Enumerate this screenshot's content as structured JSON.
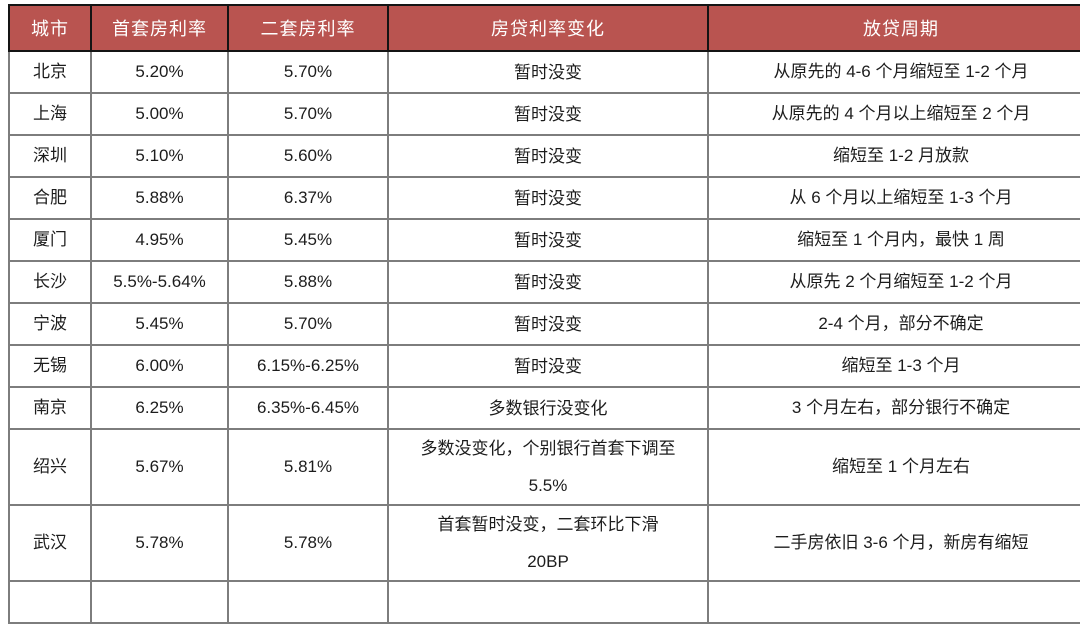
{
  "chart_data": {
    "type": "table",
    "columns": [
      "城市",
      "首套房利率",
      "二套房利率",
      "房贷利率变化",
      "放贷周期"
    ],
    "rows": [
      [
        "北京",
        "5.20%",
        "5.70%",
        "暂时没变",
        "从原先的 4-6 个月缩短至 1-2 个月"
      ],
      [
        "上海",
        "5.00%",
        "5.70%",
        "暂时没变",
        "从原先的 4 个月以上缩短至 2 个月"
      ],
      [
        "深圳",
        "5.10%",
        "5.60%",
        "暂时没变",
        "缩短至 1-2 月放款"
      ],
      [
        "合肥",
        "5.88%",
        "6.37%",
        "暂时没变",
        "从 6 个月以上缩短至 1-3 个月"
      ],
      [
        "厦门",
        "4.95%",
        "5.45%",
        "暂时没变",
        "缩短至 1 个月内，最快 1 周"
      ],
      [
        "长沙",
        "5.5%-5.64%",
        "5.88%",
        "暂时没变",
        "从原先 2 个月缩短至 1-2 个月"
      ],
      [
        "宁波",
        "5.45%",
        "5.70%",
        "暂时没变",
        "2-4 个月，部分不确定"
      ],
      [
        "无锡",
        "6.00%",
        "6.15%-6.25%",
        "暂时没变",
        "缩短至 1-3 个月"
      ],
      [
        "南京",
        "6.25%",
        "6.35%-6.45%",
        "多数银行没变化",
        "3 个月左右，部分银行不确定"
      ],
      [
        "绍兴",
        "5.67%",
        "5.81%",
        "多数没变化，个别银行首套下调至\n5.5%",
        "缩短至 1 个月左右"
      ],
      [
        "武汉",
        "5.78%",
        "5.78%",
        "首套暂时没变，二套环比下滑\n20BP",
        "二手房依旧 3-6 个月，新房有缩短"
      ]
    ]
  },
  "colors": {
    "header_bg": "#b95450",
    "header_text": "#ffffff",
    "body_text": "#1c1c1c",
    "grid_line": "#7d7d7d",
    "outer_line": "#141414"
  }
}
